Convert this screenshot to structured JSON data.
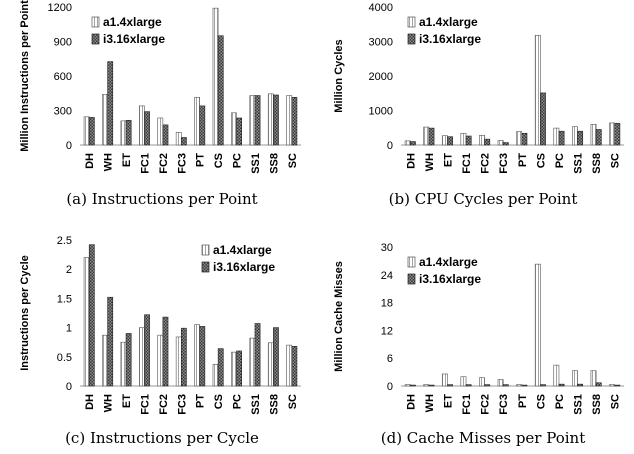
{
  "chart_data": [
    {
      "type": "bar",
      "caption": "(a) Instructions per Point",
      "ylabel": "Million Instructions per Point",
      "ylim": [
        0,
        1200
      ],
      "yticks": [
        0,
        300,
        600,
        900,
        1200
      ],
      "categories": [
        "DH",
        "WH",
        "ET",
        "FC1",
        "FC2",
        "FC3",
        "PT",
        "CS",
        "PC",
        "SS1",
        "SS8",
        "SC"
      ],
      "series": [
        {
          "name": "a1.4xlarge",
          "values": [
            245,
            440,
            210,
            340,
            235,
            110,
            415,
            1190,
            280,
            430,
            445,
            430
          ]
        },
        {
          "name": "i3.16xlarge",
          "values": [
            240,
            725,
            215,
            290,
            175,
            65,
            340,
            950,
            235,
            430,
            435,
            415
          ]
        }
      ]
    },
    {
      "type": "bar",
      "caption": "(b) CPU Cycles per Point",
      "ylabel": "Million Cycles",
      "ylim": [
        0,
        4000
      ],
      "yticks": [
        0,
        1000,
        2000,
        3000,
        4000
      ],
      "categories": [
        "DH",
        "WH",
        "ET",
        "FC1",
        "FC2",
        "FC3",
        "PT",
        "CS",
        "PC",
        "SS1",
        "SS8",
        "SC"
      ],
      "series": [
        {
          "name": "a1.4xlarge",
          "values": [
            120,
            520,
            270,
            340,
            280,
            130,
            390,
            3180,
            490,
            530,
            600,
            640
          ]
        },
        {
          "name": "i3.16xlarge",
          "values": [
            100,
            490,
            240,
            260,
            170,
            70,
            340,
            1510,
            400,
            400,
            450,
            630
          ]
        }
      ]
    },
    {
      "type": "bar",
      "caption": "(c) Instructions per Cycle",
      "ylabel": "Instructions per Cycle",
      "ylim": [
        0,
        2.5
      ],
      "yticks": [
        0,
        0.5,
        1,
        1.5,
        2,
        2.5
      ],
      "categories": [
        "DH",
        "WH",
        "ET",
        "FC1",
        "FC2",
        "FC3",
        "PT",
        "CS",
        "PC",
        "SS1",
        "SS8",
        "SC"
      ],
      "series": [
        {
          "name": "a1.4xlarge",
          "values": [
            2.2,
            0.87,
            0.75,
            1.0,
            0.87,
            0.84,
            1.05,
            0.37,
            0.58,
            0.82,
            0.74,
            0.7
          ]
        },
        {
          "name": "i3.16xlarge",
          "values": [
            2.42,
            1.52,
            0.9,
            1.22,
            1.18,
            0.99,
            1.02,
            0.64,
            0.6,
            1.07,
            1.0,
            0.68
          ]
        }
      ]
    },
    {
      "type": "bar",
      "caption": "(d) Cache Misses per Point",
      "ylabel": "Million Cache Misses",
      "ylim": [
        0,
        30
      ],
      "yticks": [
        0,
        6,
        12,
        18,
        24,
        30
      ],
      "categories": [
        "DH",
        "WH",
        "ET",
        "FC1",
        "FC2",
        "FC3",
        "PT",
        "CS",
        "PC",
        "SS1",
        "SS8",
        "SC"
      ],
      "series": [
        {
          "name": "a1.4xlarge",
          "values": [
            0.3,
            0.3,
            2.6,
            2.0,
            1.8,
            1.4,
            0.3,
            26.3,
            4.5,
            3.3,
            3.3,
            0.3
          ]
        },
        {
          "name": "i3.16xlarge",
          "values": [
            0.2,
            0.2,
            0.3,
            0.3,
            0.3,
            0.3,
            0.2,
            0.3,
            0.4,
            0.4,
            0.7,
            0.2
          ]
        }
      ]
    }
  ]
}
